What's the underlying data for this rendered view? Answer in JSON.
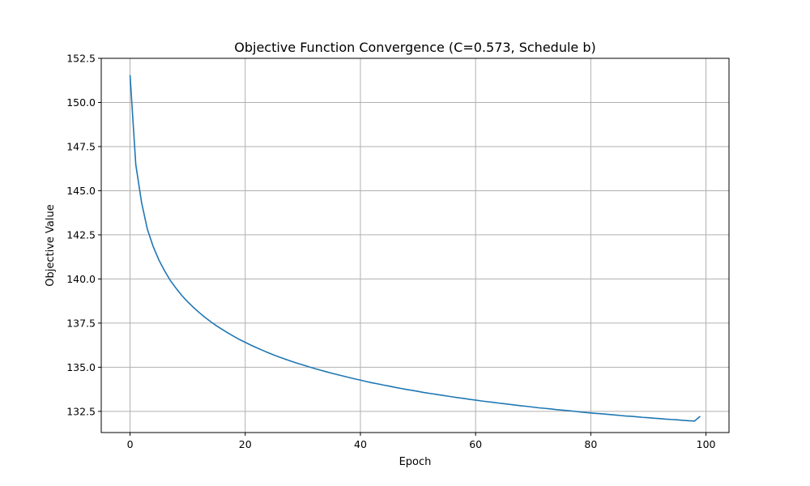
{
  "chart_data": {
    "type": "line",
    "title": "Objective Function Convergence (C=0.573, Schedule b)",
    "xlabel": "Epoch",
    "ylabel": "Objective Value",
    "xlim": [
      -5,
      104
    ],
    "ylim": [
      131.3,
      152.5
    ],
    "x_ticks": [
      0,
      20,
      40,
      60,
      80,
      100
    ],
    "x_tick_labels": [
      "0",
      "20",
      "40",
      "60",
      "80",
      "100"
    ],
    "y_ticks": [
      132.5,
      135.0,
      137.5,
      140.0,
      142.5,
      145.0,
      147.5,
      150.0,
      152.5
    ],
    "y_tick_labels": [
      "132.5",
      "135.0",
      "137.5",
      "140.0",
      "142.5",
      "145.0",
      "147.5",
      "150.0",
      "152.5"
    ],
    "grid": true,
    "series": [
      {
        "color": "#1f77b4",
        "x": [
          0,
          1,
          2,
          3,
          4,
          5,
          6,
          7,
          8,
          9,
          10,
          11,
          12,
          13,
          14,
          15,
          16,
          17,
          18,
          19,
          20,
          21,
          22,
          23,
          24,
          25,
          26,
          27,
          28,
          29,
          30,
          31,
          32,
          33,
          34,
          35,
          36,
          37,
          38,
          39,
          40,
          41,
          42,
          43,
          44,
          45,
          46,
          47,
          48,
          49,
          50,
          51,
          52,
          53,
          54,
          55,
          56,
          57,
          58,
          59,
          60,
          61,
          62,
          63,
          64,
          65,
          66,
          67,
          68,
          69,
          70,
          71,
          72,
          73,
          74,
          75,
          76,
          77,
          78,
          79,
          80,
          81,
          82,
          83,
          84,
          85,
          86,
          87,
          88,
          89,
          90,
          91,
          92,
          93,
          94,
          95,
          96,
          97,
          98,
          99
        ],
        "values": [
          151.55,
          146.47,
          144.33,
          142.83,
          141.85,
          141.08,
          140.46,
          139.91,
          139.47,
          139.06,
          138.71,
          138.39,
          138.1,
          137.83,
          137.58,
          137.35,
          137.14,
          136.94,
          136.75,
          136.57,
          136.41,
          136.25,
          136.1,
          135.96,
          135.82,
          135.69,
          135.57,
          135.45,
          135.34,
          135.23,
          135.13,
          135.03,
          134.93,
          134.84,
          134.75,
          134.66,
          134.58,
          134.5,
          134.42,
          134.34,
          134.27,
          134.19,
          134.12,
          134.06,
          133.99,
          133.93,
          133.86,
          133.8,
          133.74,
          133.69,
          133.63,
          133.57,
          133.52,
          133.47,
          133.42,
          133.37,
          133.32,
          133.27,
          133.23,
          133.18,
          133.14,
          133.09,
          133.05,
          133.01,
          132.97,
          132.93,
          132.89,
          132.85,
          132.81,
          132.78,
          132.74,
          132.7,
          132.67,
          132.64,
          132.6,
          132.57,
          132.54,
          132.51,
          132.47,
          132.44,
          132.41,
          132.38,
          132.36,
          132.33,
          132.3,
          132.27,
          132.24,
          132.22,
          132.19,
          132.16,
          132.14,
          132.11,
          132.09,
          132.06,
          132.04,
          132.02,
          131.99,
          131.97,
          131.95,
          132.22
        ]
      }
    ]
  }
}
